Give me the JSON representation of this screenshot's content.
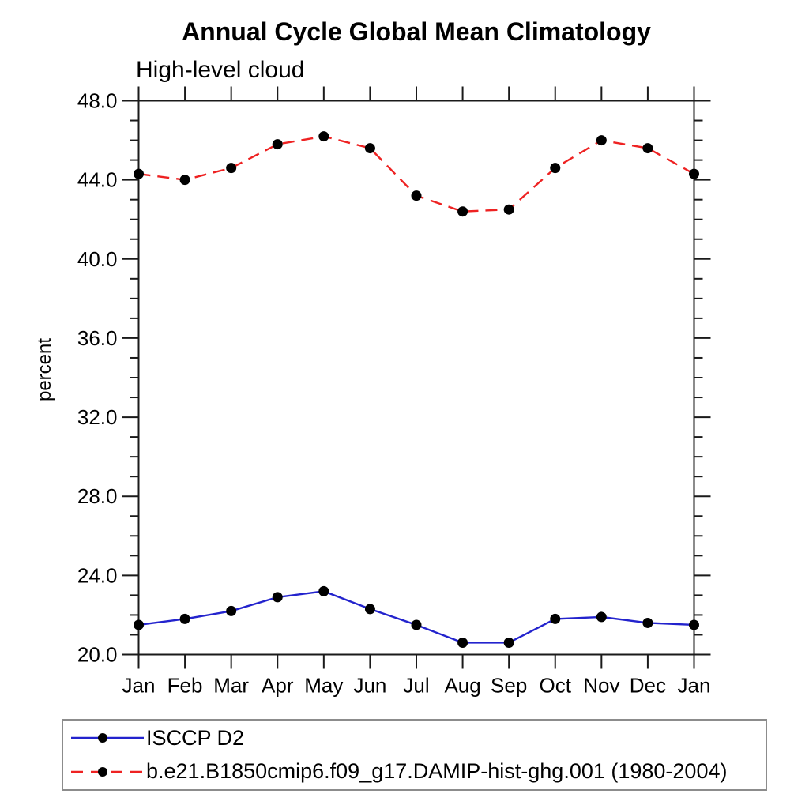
{
  "chart_data": {
    "type": "line",
    "title": "Annual Cycle Global Mean Climatology",
    "subtitle": "High-level cloud",
    "ylabel": "percent",
    "x_categories": [
      "Jan",
      "Feb",
      "Mar",
      "Apr",
      "May",
      "Jun",
      "Jul",
      "Aug",
      "Sep",
      "Oct",
      "Nov",
      "Dec",
      "Jan"
    ],
    "ylim": [
      20.0,
      48.0
    ],
    "y_major_ticks": [
      20.0,
      24.0,
      28.0,
      32.0,
      36.0,
      40.0,
      44.0,
      48.0
    ],
    "y_minor_step": 1.0,
    "y_tick_label_format": "one_decimal",
    "grid": false,
    "legend_position": "bottom-left",
    "frame_color": "#1a1a1a",
    "marker": {
      "shape": "circle",
      "color": "#000000",
      "radius": 6.5
    },
    "series": [
      {
        "name": "ISCCP D2",
        "color": "#2323cd",
        "line_style": "solid",
        "values": [
          21.5,
          21.8,
          22.2,
          22.9,
          23.2,
          22.3,
          21.5,
          20.6,
          20.6,
          21.8,
          21.9,
          21.6,
          21.5
        ]
      },
      {
        "name": "b.e21.B1850cmip6.f09_g17.DAMIP-hist-ghg.001 (1980-2004)",
        "color": "#ee2222",
        "line_style": "dashed",
        "values": [
          44.3,
          44.0,
          44.6,
          45.8,
          46.2,
          45.6,
          43.2,
          42.4,
          42.5,
          44.6,
          46.0,
          45.6,
          44.3
        ]
      }
    ]
  }
}
